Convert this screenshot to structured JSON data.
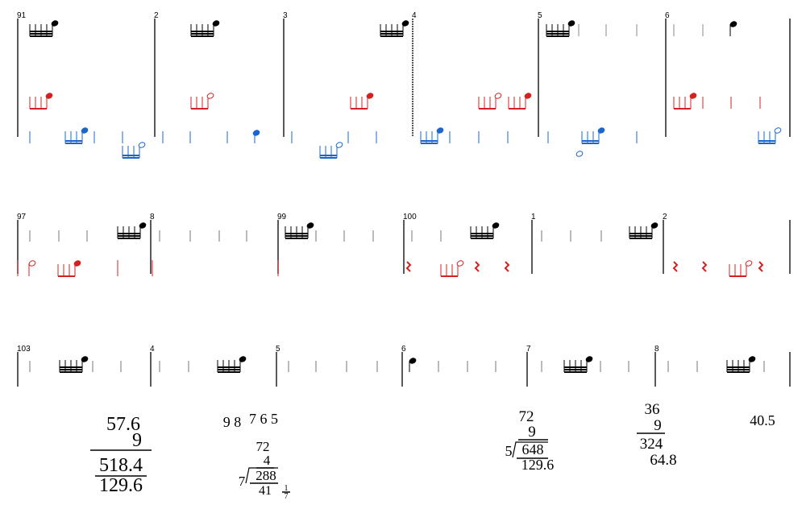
{
  "systems": [
    {
      "measures": [
        "91",
        "2",
        "3",
        "4",
        "5",
        "6"
      ]
    },
    {
      "measures": [
        "97",
        "8",
        "99",
        "100",
        "1",
        "2"
      ]
    },
    {
      "measures": [
        "103",
        "4",
        "5",
        "6",
        "7",
        "8"
      ]
    }
  ],
  "calculations": [
    {
      "lines": [
        "57.6",
        "9",
        "518.4",
        "129.6"
      ]
    },
    {
      "lines": [
        "9 8",
        "7 6 5",
        "72",
        "4",
        "7",
        "288",
        "41",
        "1",
        "7"
      ]
    },
    {
      "lines": [
        "72",
        "9",
        "5",
        "648",
        "129.6"
      ]
    },
    {
      "lines": [
        "36",
        "9",
        "324",
        "64.8"
      ]
    },
    {
      "lines": [
        "40.5"
      ]
    }
  ]
}
